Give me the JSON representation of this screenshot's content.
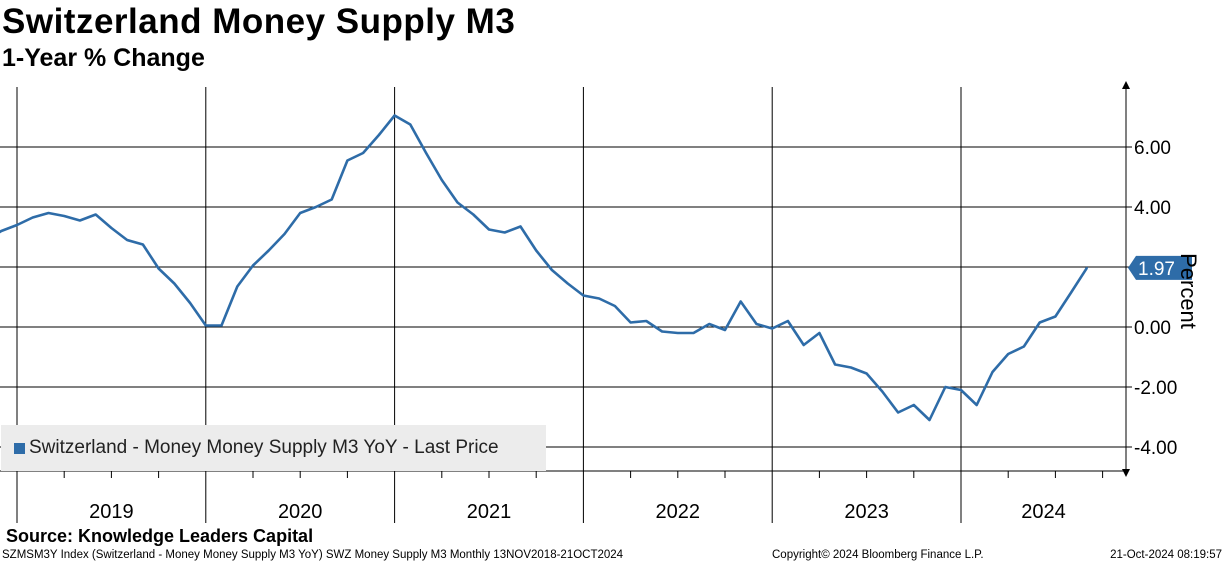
{
  "chart_data": {
    "type": "line",
    "title": "Switzerland Money Supply M3",
    "subtitle": "1-Year % Change",
    "ylabel": "Percent",
    "xlabel": "",
    "ylim": [
      -4.8,
      8.0
    ],
    "yticks": [
      -4.0,
      -2.0,
      0.0,
      2.0,
      4.0,
      6.0
    ],
    "ytick_labels": [
      "-4.00",
      "-2.00",
      "0.00",
      "2.00",
      "4.00",
      "6.00"
    ],
    "year_labels": [
      "2019",
      "2020",
      "2021",
      "2022",
      "2023",
      "2024"
    ],
    "x_start": "2018-11",
    "x_end": "2024-12",
    "last_value": 1.97,
    "last_value_label": "1.97",
    "series": [
      {
        "name": "Switzerland - Money Money Supply M3 YoY - Last Price",
        "color": "#2e6ca8",
        "x": [
          "2018-11",
          "2018-12",
          "2019-01",
          "2019-02",
          "2019-03",
          "2019-04",
          "2019-05",
          "2019-06",
          "2019-07",
          "2019-08",
          "2019-09",
          "2019-10",
          "2019-11",
          "2019-12",
          "2020-01",
          "2020-02",
          "2020-03",
          "2020-04",
          "2020-05",
          "2020-06",
          "2020-07",
          "2020-08",
          "2020-09",
          "2020-10",
          "2020-11",
          "2020-12",
          "2021-01",
          "2021-02",
          "2021-03",
          "2021-04",
          "2021-05",
          "2021-06",
          "2021-07",
          "2021-08",
          "2021-09",
          "2021-10",
          "2021-11",
          "2021-12",
          "2022-01",
          "2022-02",
          "2022-03",
          "2022-04",
          "2022-05",
          "2022-06",
          "2022-07",
          "2022-08",
          "2022-09",
          "2022-10",
          "2022-11",
          "2022-12",
          "2023-01",
          "2023-02",
          "2023-03",
          "2023-04",
          "2023-05",
          "2023-06",
          "2023-07",
          "2023-08",
          "2023-09",
          "2023-10",
          "2023-11",
          "2023-12",
          "2024-01",
          "2024-02",
          "2024-03",
          "2024-04",
          "2024-05",
          "2024-06",
          "2024-07",
          "2024-08",
          "2024-09"
        ],
        "values": [
          2.85,
          3.2,
          3.4,
          3.65,
          3.8,
          3.7,
          3.55,
          3.75,
          3.3,
          2.9,
          2.75,
          1.95,
          1.45,
          0.8,
          0.05,
          0.05,
          1.35,
          2.05,
          2.55,
          3.1,
          3.8,
          4.0,
          4.25,
          5.55,
          5.8,
          6.4,
          7.05,
          6.75,
          5.8,
          4.9,
          4.15,
          3.75,
          3.25,
          3.15,
          3.35,
          2.55,
          1.9,
          1.45,
          1.05,
          0.95,
          0.7,
          0.15,
          0.2,
          -0.15,
          -0.2,
          -0.2,
          0.1,
          -0.1,
          0.85,
          0.1,
          -0.05,
          0.2,
          -0.6,
          -0.2,
          -1.25,
          -1.35,
          -1.55,
          -2.15,
          -2.85,
          -2.6,
          -3.1,
          -2.0,
          -2.1,
          -2.6,
          -1.5,
          -0.9,
          -0.65,
          0.15,
          0.35,
          1.15,
          1.97
        ]
      }
    ]
  },
  "source": "Source: Knowledge Leaders Capital",
  "footer": {
    "left": "SZMSM3Y Index (Switzerland - Money Money Supply M3 YoY) SWZ Money Supply M3  Monthly 13NOV2018-21OCT2024",
    "mid": "Copyright© 2024 Bloomberg Finance L.P.",
    "right": "21-Oct-2024 08:19:57"
  },
  "colors": {
    "line": "#2e6ca8",
    "grid": "#000000",
    "legend_bg": "#ececec"
  }
}
